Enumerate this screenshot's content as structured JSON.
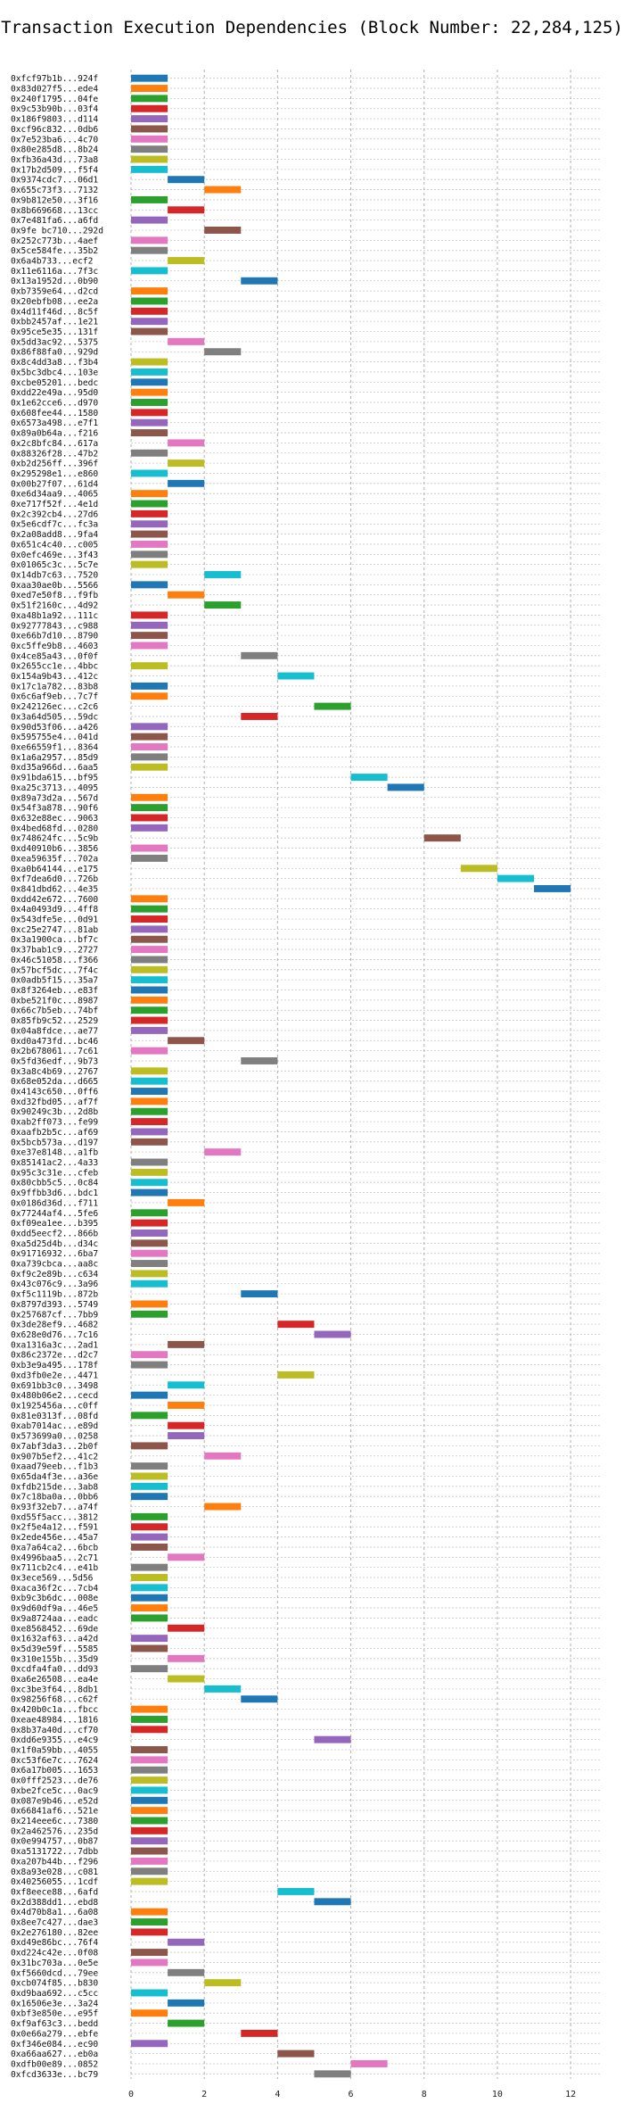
{
  "chart_data": {
    "type": "bar",
    "orientation": "horizontal",
    "title": "Transaction Execution Dependencies (Block Number: 22,284,125)",
    "xlabel": "",
    "ylabel": "",
    "xlim": [
      0,
      12.8
    ],
    "xticks": [
      0,
      2,
      4,
      6,
      8,
      10,
      12
    ],
    "grid": true,
    "colors": [
      "#1f77b4",
      "#ff7f0e",
      "#2ca02c",
      "#d62728",
      "#9467bd",
      "#8c564b",
      "#e377c2",
      "#7f7f7f",
      "#bcbd22",
      "#17becf"
    ],
    "rows": [
      {
        "label": "0xfcf97b1b...924f",
        "start": 0
      },
      {
        "label": "0x83d027f5...ede4",
        "start": 0
      },
      {
        "label": "0x240f1795...04fe",
        "start": 0
      },
      {
        "label": "0x9c53b90b...03f4",
        "start": 0
      },
      {
        "label": "0x186f9803...d114",
        "start": 0
      },
      {
        "label": "0xcf96c832...0db6",
        "start": 0
      },
      {
        "label": "0x7e523ba6...4c70",
        "start": 0
      },
      {
        "label": "0x80e285d8...8b24",
        "start": 0
      },
      {
        "label": "0xfb36a43d...73a8",
        "start": 0
      },
      {
        "label": "0x17b2d509...f5f4",
        "start": 0
      },
      {
        "label": "0x9374cdc7...06d1",
        "start": 1
      },
      {
        "label": "0x655c73f3...7132",
        "start": 2
      },
      {
        "label": "0x9b812e50...3f16",
        "start": 0
      },
      {
        "label": "0x8b669668...13cc",
        "start": 1
      },
      {
        "label": "0x7e481fa6...a6fd",
        "start": 0
      },
      {
        "label": "0x9fe bc710...292d",
        "start": 2
      },
      {
        "label": "0x252c773b...4aef",
        "start": 0
      },
      {
        "label": "0x5ce584fe...35b2",
        "start": 0
      },
      {
        "label": "0x6a4b733...ecf2",
        "start": 1
      },
      {
        "label": "0x11e6116a...7f3c",
        "start": 0
      },
      {
        "label": "0x13a1952d...0b90",
        "start": 3
      },
      {
        "label": "0xb7359e64...d2cd",
        "start": 0
      },
      {
        "label": "0x20ebfb08...ee2a",
        "start": 0
      },
      {
        "label": "0x4d11f46d...8c5f",
        "start": 0
      },
      {
        "label": "0xbb2457af...1e21",
        "start": 0
      },
      {
        "label": "0x95ce5e35...131f",
        "start": 0
      },
      {
        "label": "0x5dd3ac92...5375",
        "start": 1
      },
      {
        "label": "0x86f88fa0...929d",
        "start": 2
      },
      {
        "label": "0x8c4dd3a8...f3b4",
        "start": 0
      },
      {
        "label": "0x5bc3dbc4...103e",
        "start": 0
      },
      {
        "label": "0xcbe05201...bedc",
        "start": 0
      },
      {
        "label": "0xdd22e49a...95d0",
        "start": 0
      },
      {
        "label": "0x1e62cce6...d970",
        "start": 0
      },
      {
        "label": "0x608fee44...1580",
        "start": 0
      },
      {
        "label": "0x6573a498...e7f1",
        "start": 0
      },
      {
        "label": "0x89a0b64a...f216",
        "start": 0
      },
      {
        "label": "0x2c8bfc84...617a",
        "start": 1
      },
      {
        "label": "0x88326f28...47b2",
        "start": 0
      },
      {
        "label": "0xb2d256ff...396f",
        "start": 1
      },
      {
        "label": "0x295298e1...e860",
        "start": 0
      },
      {
        "label": "0x00b27f07...61d4",
        "start": 1
      },
      {
        "label": "0xe6d34aa9...4065",
        "start": 0
      },
      {
        "label": "0xe717f52f...4e1d",
        "start": 0
      },
      {
        "label": "0x2c392cb4...27d6",
        "start": 0
      },
      {
        "label": "0x5e6cdf7c...fc3a",
        "start": 0
      },
      {
        "label": "0x2a08add8...9fa4",
        "start": 0
      },
      {
        "label": "0x651c4c40...c005",
        "start": 0
      },
      {
        "label": "0x0efc469e...3f43",
        "start": 0
      },
      {
        "label": "0x01065c3c...5c7e",
        "start": 0
      },
      {
        "label": "0x14db7c63...7520",
        "start": 2
      },
      {
        "label": "0xaa30ae0b...5566",
        "start": 0
      },
      {
        "label": "0xed7e50f8...f9fb",
        "start": 1
      },
      {
        "label": "0x51f2160c...4d92",
        "start": 2
      },
      {
        "label": "0xa48b1a92...111c",
        "start": 0
      },
      {
        "label": "0x92777843...c988",
        "start": 0
      },
      {
        "label": "0xe66b7d10...8790",
        "start": 0
      },
      {
        "label": "0xc5ffe9b8...4603",
        "start": 0
      },
      {
        "label": "0x4ce85a43...0f0f",
        "start": 3
      },
      {
        "label": "0x2655cc1e...4bbc",
        "start": 0
      },
      {
        "label": "0x154a9b43...412c",
        "start": 4
      },
      {
        "label": "0x17c1a782...83b8",
        "start": 0
      },
      {
        "label": "0x6c6af9eb...7c7f",
        "start": 0
      },
      {
        "label": "0x242126ec...c2c6",
        "start": 5
      },
      {
        "label": "0x3a64d505...59dc",
        "start": 3
      },
      {
        "label": "0x90d53f06...a426",
        "start": 0
      },
      {
        "label": "0x595755e4...041d",
        "start": 0
      },
      {
        "label": "0xe66559f1...8364",
        "start": 0
      },
      {
        "label": "0x1a6a2957...85d9",
        "start": 0
      },
      {
        "label": "0xd35a966d...6aa5",
        "start": 0
      },
      {
        "label": "0x91bda615...bf95",
        "start": 6
      },
      {
        "label": "0xa25c3713...4095",
        "start": 7
      },
      {
        "label": "0x89a73d2a...567d",
        "start": 0
      },
      {
        "label": "0x54f3a878...90f6",
        "start": 0
      },
      {
        "label": "0x632e88ec...9063",
        "start": 0
      },
      {
        "label": "0x4bed68fd...0280",
        "start": 0
      },
      {
        "label": "0x748624fc...5c9b",
        "start": 8
      },
      {
        "label": "0xd40910b6...3856",
        "start": 0
      },
      {
        "label": "0xea59635f...702a",
        "start": 0
      },
      {
        "label": "0xa0b64144...e175",
        "start": 9
      },
      {
        "label": "0xf7dea6d0...726b",
        "start": 10
      },
      {
        "label": "0x841dbd62...4e35",
        "start": 11
      },
      {
        "label": "0xdd42e672...7600",
        "start": 0
      },
      {
        "label": "0x4a0493d9...4ff8",
        "start": 0
      },
      {
        "label": "0x543dfe5e...0d91",
        "start": 0
      },
      {
        "label": "0xc25e2747...81ab",
        "start": 0
      },
      {
        "label": "0x3a1900ca...bf7c",
        "start": 0
      },
      {
        "label": "0x37bab1c9...2727",
        "start": 0
      },
      {
        "label": "0x46c51058...f366",
        "start": 0
      },
      {
        "label": "0x57bcf5dc...7f4c",
        "start": 0
      },
      {
        "label": "0x0adb5f15...35a7",
        "start": 0
      },
      {
        "label": "0x8f3264eb...e83f",
        "start": 0
      },
      {
        "label": "0xbe521f0c...8987",
        "start": 0
      },
      {
        "label": "0x66c7b5eb...74bf",
        "start": 0
      },
      {
        "label": "0x85fb9c52...2529",
        "start": 0
      },
      {
        "label": "0x04a8fdce...ae77",
        "start": 0
      },
      {
        "label": "0xd0a473fd...bc46",
        "start": 1
      },
      {
        "label": "0x2b678061...7c61",
        "start": 0
      },
      {
        "label": "0x5fd36edf...9b73",
        "start": 3
      },
      {
        "label": "0x3a8c4b69...2767",
        "start": 0
      },
      {
        "label": "0x68e052da...d665",
        "start": 0
      },
      {
        "label": "0x4143c650...0ff6",
        "start": 0
      },
      {
        "label": "0xd32fbd05...af7f",
        "start": 0
      },
      {
        "label": "0x90249c3b...2d8b",
        "start": 0
      },
      {
        "label": "0xab2ff073...fe99",
        "start": 0
      },
      {
        "label": "0xaafb2b5c...af69",
        "start": 0
      },
      {
        "label": "0x5bcb573a...d197",
        "start": 0
      },
      {
        "label": "0xe37e8148...a1fb",
        "start": 2
      },
      {
        "label": "0x85141ac2...4a33",
        "start": 0
      },
      {
        "label": "0x95c3c31e...cfeb",
        "start": 0
      },
      {
        "label": "0x80cbb5c5...0c84",
        "start": 0
      },
      {
        "label": "0x9ffbb3d6...bdc1",
        "start": 0
      },
      {
        "label": "0x0186d36d...f711",
        "start": 1
      },
      {
        "label": "0x77244af4...5fe6",
        "start": 0
      },
      {
        "label": "0xf09ea1ee...b395",
        "start": 0
      },
      {
        "label": "0xdd5eecf2...866b",
        "start": 0
      },
      {
        "label": "0xa5d25d4b...d34c",
        "start": 0
      },
      {
        "label": "0x91716932...6ba7",
        "start": 0
      },
      {
        "label": "0xa739cbca...aa8c",
        "start": 0
      },
      {
        "label": "0xf9c2e89b...c634",
        "start": 0
      },
      {
        "label": "0x43c076c9...3a96",
        "start": 0
      },
      {
        "label": "0xf5c1119b...872b",
        "start": 3
      },
      {
        "label": "0x8797d393...5749",
        "start": 0
      },
      {
        "label": "0x257687cf...7bb9",
        "start": 0
      },
      {
        "label": "0x3de28ef9...4682",
        "start": 4
      },
      {
        "label": "0x628e0d76...7c16",
        "start": 5
      },
      {
        "label": "0xa1316a3c...2ad1",
        "start": 1
      },
      {
        "label": "0x86c2372e...d2c7",
        "start": 0
      },
      {
        "label": "0xb3e9a495...178f",
        "start": 0
      },
      {
        "label": "0xd3fb0e2e...4471",
        "start": 4
      },
      {
        "label": "0x691bb3c0...3498",
        "start": 1
      },
      {
        "label": "0x480b06e2...cecd",
        "start": 0
      },
      {
        "label": "0x1925456a...c0ff",
        "start": 1
      },
      {
        "label": "0x81e0313f...08fd",
        "start": 0
      },
      {
        "label": "0xab7014ac...e89d",
        "start": 1
      },
      {
        "label": "0x573699a0...0258",
        "start": 1
      },
      {
        "label": "0x7abf3da3...2b0f",
        "start": 0
      },
      {
        "label": "0x907b5ef2...41c2",
        "start": 2
      },
      {
        "label": "0xaad79eeb...f1b3",
        "start": 0
      },
      {
        "label": "0x65da4f3e...a36e",
        "start": 0
      },
      {
        "label": "0xfdb215de...3ab8",
        "start": 0
      },
      {
        "label": "0x7c18ba0a...0bb6",
        "start": 0
      },
      {
        "label": "0x93f32eb7...a74f",
        "start": 2
      },
      {
        "label": "0xd55f5acc...3812",
        "start": 0
      },
      {
        "label": "0x2f5e4a12...f591",
        "start": 0
      },
      {
        "label": "0x2ede456e...45a7",
        "start": 0
      },
      {
        "label": "0xa7a64ca2...6bcb",
        "start": 0
      },
      {
        "label": "0x4996baa5...2c71",
        "start": 1
      },
      {
        "label": "0x711cb2c4...e41b",
        "start": 0
      },
      {
        "label": "0x3ece569...5d56",
        "start": 0
      },
      {
        "label": "0xaca36f2c...7cb4",
        "start": 0
      },
      {
        "label": "0xb9c3b6dc...008e",
        "start": 0
      },
      {
        "label": "0x9d60df9a...46e5",
        "start": 0
      },
      {
        "label": "0x9a8724aa...eadc",
        "start": 0
      },
      {
        "label": "0xe8568452...69de",
        "start": 1
      },
      {
        "label": "0x1632af63...a42d",
        "start": 0
      },
      {
        "label": "0x5d39e59f...5585",
        "start": 0
      },
      {
        "label": "0x310e155b...35d9",
        "start": 1
      },
      {
        "label": "0xcdfa4fa0...dd93",
        "start": 0
      },
      {
        "label": "0xa6e26508...ea4e",
        "start": 1
      },
      {
        "label": "0xc3be3f64...8db1",
        "start": 2
      },
      {
        "label": "0x98256f68...c62f",
        "start": 3
      },
      {
        "label": "0x420b0c1a...fbcc",
        "start": 0
      },
      {
        "label": "0xeae48984...1816",
        "start": 0
      },
      {
        "label": "0x8b37a40d...cf70",
        "start": 0
      },
      {
        "label": "0xdd6e9355...e4c9",
        "start": 5
      },
      {
        "label": "0x1f0a59bb...4055",
        "start": 0
      },
      {
        "label": "0xc53f6e7c...7624",
        "start": 0
      },
      {
        "label": "0x6a17b005...1653",
        "start": 0
      },
      {
        "label": "0x0fff2523...de76",
        "start": 0
      },
      {
        "label": "0xbe2fce5c...0ac9",
        "start": 0
      },
      {
        "label": "0x087e9b46...e52d",
        "start": 0
      },
      {
        "label": "0x66841af6...521e",
        "start": 0
      },
      {
        "label": "0x214eee6c...7380",
        "start": 0
      },
      {
        "label": "0x2a462576...235d",
        "start": 0
      },
      {
        "label": "0x0e994757...0b87",
        "start": 0
      },
      {
        "label": "0xa5131722...7dbb",
        "start": 0
      },
      {
        "label": "0xa207b44b...f296",
        "start": 0
      },
      {
        "label": "0x8a93e028...c081",
        "start": 0
      },
      {
        "label": "0x40256055...1cdf",
        "start": 0
      },
      {
        "label": "0xf8eece88...6afd",
        "start": 4
      },
      {
        "label": "0x2d388dd1...ebd8",
        "start": 5
      },
      {
        "label": "0x4d70b8a1...6a08",
        "start": 0
      },
      {
        "label": "0x8ee7c427...dae3",
        "start": 0
      },
      {
        "label": "0x2e276180...82ee",
        "start": 0
      },
      {
        "label": "0xd49e86bc...76f4",
        "start": 1
      },
      {
        "label": "0xd224c42e...0f08",
        "start": 0
      },
      {
        "label": "0x31bc703a...0e5e",
        "start": 0
      },
      {
        "label": "0xf5660dcd...79ee",
        "start": 1
      },
      {
        "label": "0xcb074f85...b830",
        "start": 2
      },
      {
        "label": "0xd9baa692...c5cc",
        "start": 0
      },
      {
        "label": "0x16506e3e...3a24",
        "start": 1
      },
      {
        "label": "0xbf3e850e...e95f",
        "start": 0
      },
      {
        "label": "0xf9af63c3...bedd",
        "start": 1
      },
      {
        "label": "0x0e66a279...ebfe",
        "start": 3
      },
      {
        "label": "0xf346e084...ec90",
        "start": 0
      },
      {
        "label": "0xa66aa627...eb0a",
        "start": 4
      },
      {
        "label": "0xdfb00e89...0852",
        "start": 6
      },
      {
        "label": "0xfcd3633e...bc79",
        "start": 5
      }
    ]
  }
}
